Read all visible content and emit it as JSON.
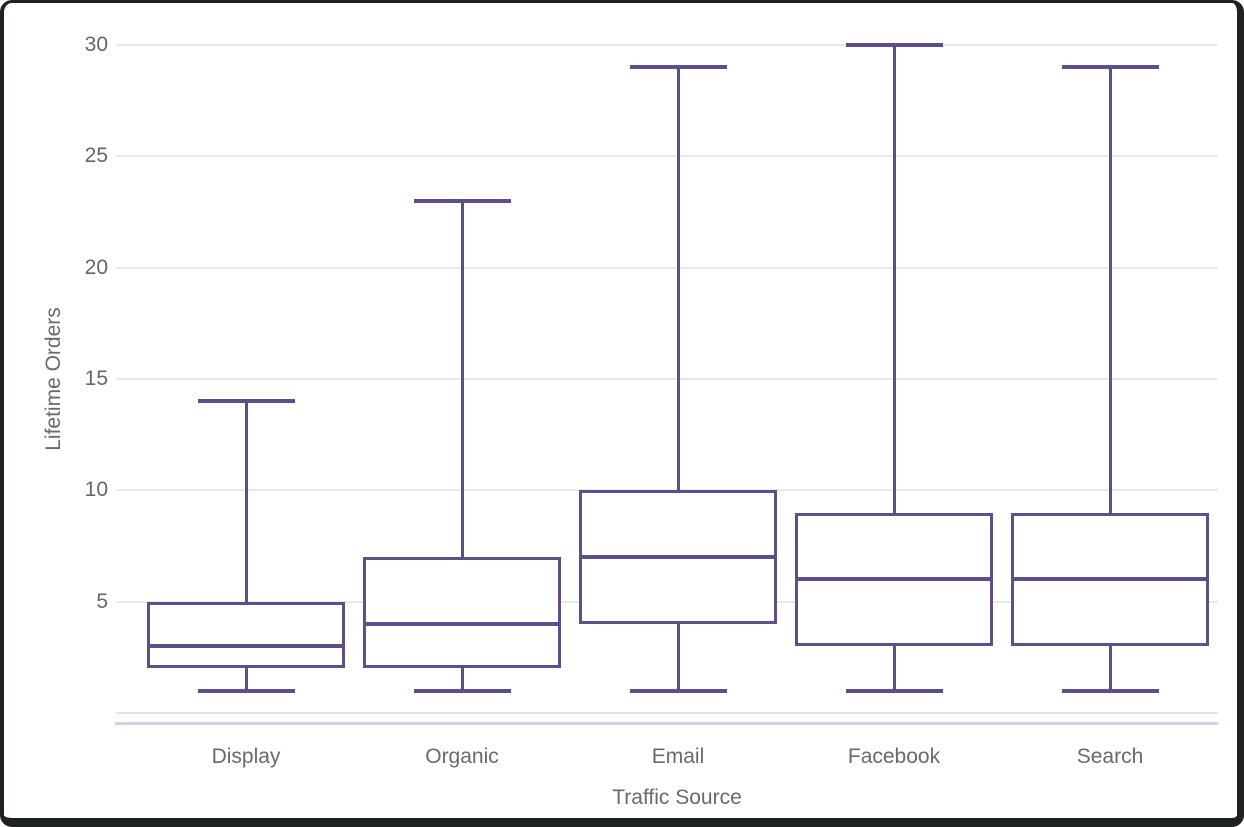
{
  "chart_data": {
    "type": "boxplot",
    "xlabel": "Traffic Source",
    "ylabel": "Lifetime Orders",
    "categories": [
      "Display",
      "Organic",
      "Email",
      "Facebook",
      "Search"
    ],
    "series": [
      {
        "name": "Display",
        "min": 1,
        "q1": 2,
        "median": 3,
        "q3": 5,
        "max": 14
      },
      {
        "name": "Organic",
        "min": 1,
        "q1": 2,
        "median": 4,
        "q3": 7,
        "max": 23
      },
      {
        "name": "Email",
        "min": 1,
        "q1": 4,
        "median": 7,
        "q3": 10,
        "max": 29
      },
      {
        "name": "Facebook",
        "min": 1,
        "q1": 3,
        "median": 6,
        "q3": 9,
        "max": 30
      },
      {
        "name": "Search",
        "min": 1,
        "q1": 3,
        "median": 6,
        "q3": 9,
        "max": 29
      }
    ],
    "y_ticks": [
      5,
      10,
      15,
      20,
      25,
      30
    ],
    "ylim": [
      0,
      32
    ],
    "grid": true,
    "legend": "none"
  },
  "colors": {
    "box_stroke": "#5E4E8C",
    "gridline": "#E9E9E9",
    "baseline": "#E3E3E3",
    "axis_line": "#CCD5E8",
    "tick_text": "#666666",
    "label_text": "#6A6A6A",
    "frame": "#1E2222",
    "background": "#FFFFFF"
  }
}
